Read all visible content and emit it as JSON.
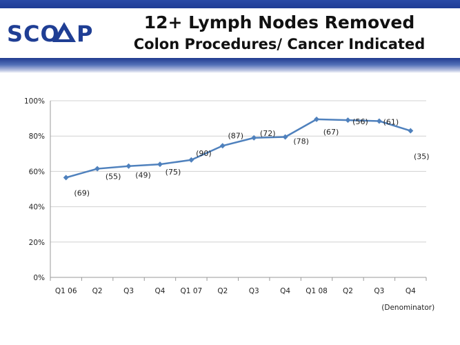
{
  "header": {
    "logo_text": "SCOAP",
    "title": "12+ Lymph Nodes Removed",
    "subtitle": "Colon Procedures/ Cancer Indicated"
  },
  "colors": {
    "line": "#4f81bd",
    "grid": "#d0d0d0",
    "brand": "#1f3e94"
  },
  "chart_data": {
    "type": "line",
    "title": "",
    "xlabel": "",
    "ylabel": "",
    "ylim": [
      0,
      100
    ],
    "grid": true,
    "y_ticks": [
      "0%",
      "20%",
      "40%",
      "60%",
      "80%",
      "100%"
    ],
    "categories": [
      "Q1 06",
      "Q2",
      "Q3",
      "Q4",
      "Q1 07",
      "Q2",
      "Q3",
      "Q4",
      "Q1 08",
      "Q2",
      "Q3",
      "Q4"
    ],
    "series": [
      {
        "values": [
          56.5,
          61.5,
          63,
          64,
          66.5,
          74.5,
          79,
          79.5,
          89.5,
          89,
          88.5,
          83
        ],
        "denominators": [
          "(69)",
          "(55)",
          "(49)",
          "(75)",
          "(90)",
          "(87)",
          "(72)",
          "(78)",
          "(67)",
          "(56)",
          "(61)",
          "(35)"
        ]
      }
    ],
    "annotation": "(Denominator)"
  }
}
